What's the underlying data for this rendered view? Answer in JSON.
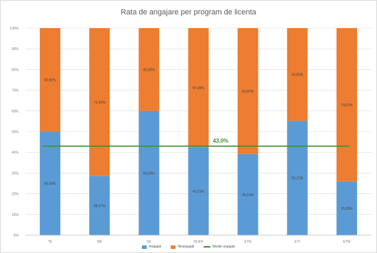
{
  "chart_data": {
    "type": "bar",
    "stacked": true,
    "title": "Rata de angajare per program de licenta",
    "categories": [
      "TE",
      "ME",
      "SE",
      "HUER",
      "ETN",
      "ETI",
      "ETM"
    ],
    "series": [
      {
        "name": "Angajati",
        "color": "#5b9bd5",
        "values": [
          50.0,
          28.57,
          60.0,
          42.51,
          39.13,
          55.17,
          25.93
        ]
      },
      {
        "name": "Neangajati",
        "color": "#ed7d31",
        "values": [
          50.0,
          71.43,
          40.0,
          57.49,
          60.87,
          44.83,
          74.07
        ]
      }
    ],
    "value_labels": {
      "Angajati": [
        "50,00%",
        "28,57%",
        "60,00%",
        "42,51%",
        "39,13%",
        "55,17%",
        "25,93%"
      ],
      "Neangajati": [
        "50,00%",
        "71,43%",
        "40,00%",
        "57,49%",
        "60,87%",
        "44,83%",
        "74,07%"
      ]
    },
    "reference_line": {
      "name": "Medie angajati",
      "value": 43.0,
      "label": "43,0%",
      "color": "#3f8f2f"
    },
    "ylim": [
      0,
      100
    ],
    "yticks": [
      "0%",
      "10%",
      "20%",
      "30%",
      "40%",
      "50%",
      "60%",
      "70%",
      "80%",
      "90%",
      "100%"
    ],
    "grid": true,
    "legend": "bottom"
  }
}
